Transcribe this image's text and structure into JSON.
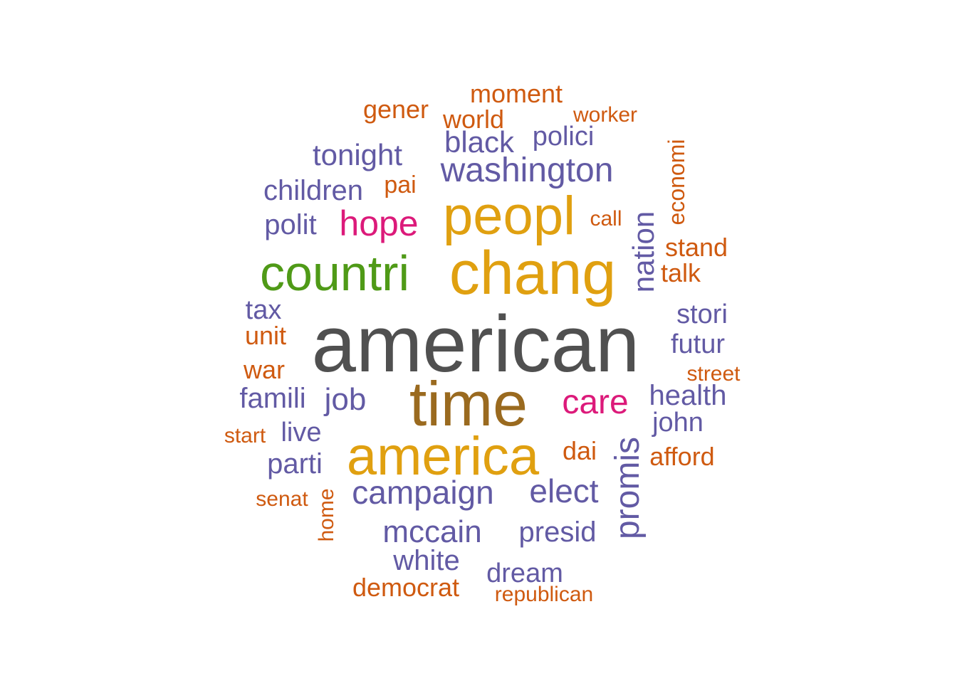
{
  "chart_data": {
    "type": "wordcloud",
    "palette": {
      "gray": "#505050",
      "brown": "#9a6a1f",
      "gold": "#e0a010",
      "green": "#4f9a17",
      "magenta": "#dc1a7a",
      "purple": "#625aa4",
      "orange": "#cf5a10"
    },
    "words": [
      {
        "text": "american",
        "color": "gray",
        "rotated": false
      },
      {
        "text": "time",
        "color": "brown",
        "rotated": false
      },
      {
        "text": "chang",
        "color": "gold",
        "rotated": false
      },
      {
        "text": "america",
        "color": "gold",
        "rotated": false
      },
      {
        "text": "peopl",
        "color": "gold",
        "rotated": false
      },
      {
        "text": "countri",
        "color": "green",
        "rotated": false
      },
      {
        "text": "hope",
        "color": "magenta",
        "rotated": false
      },
      {
        "text": "care",
        "color": "magenta",
        "rotated": false
      },
      {
        "text": "washington",
        "color": "purple",
        "rotated": false
      },
      {
        "text": "campaign",
        "color": "purple",
        "rotated": false
      },
      {
        "text": "elect",
        "color": "purple",
        "rotated": false
      },
      {
        "text": "nation",
        "color": "purple",
        "rotated": true
      },
      {
        "text": "promis",
        "color": "purple",
        "rotated": true
      },
      {
        "text": "mccain",
        "color": "purple",
        "rotated": false
      },
      {
        "text": "tonight",
        "color": "purple",
        "rotated": false
      },
      {
        "text": "children",
        "color": "purple",
        "rotated": false
      },
      {
        "text": "black",
        "color": "purple",
        "rotated": false
      },
      {
        "text": "job",
        "color": "purple",
        "rotated": false
      },
      {
        "text": "health",
        "color": "purple",
        "rotated": false
      },
      {
        "text": "presid",
        "color": "purple",
        "rotated": false
      },
      {
        "text": "polit",
        "color": "purple",
        "rotated": false
      },
      {
        "text": "famili",
        "color": "purple",
        "rotated": false
      },
      {
        "text": "white",
        "color": "purple",
        "rotated": false
      },
      {
        "text": "dream",
        "color": "purple",
        "rotated": false
      },
      {
        "text": "polici",
        "color": "purple",
        "rotated": false
      },
      {
        "text": "stori",
        "color": "purple",
        "rotated": false
      },
      {
        "text": "futur",
        "color": "purple",
        "rotated": false
      },
      {
        "text": "john",
        "color": "purple",
        "rotated": false
      },
      {
        "text": "parti",
        "color": "purple",
        "rotated": false
      },
      {
        "text": "tax",
        "color": "purple",
        "rotated": false
      },
      {
        "text": "live",
        "color": "purple",
        "rotated": false
      },
      {
        "text": "moment",
        "color": "orange",
        "rotated": false
      },
      {
        "text": "world",
        "color": "orange",
        "rotated": false
      },
      {
        "text": "gener",
        "color": "orange",
        "rotated": false
      },
      {
        "text": "stand",
        "color": "orange",
        "rotated": false
      },
      {
        "text": "afford",
        "color": "orange",
        "rotated": false
      },
      {
        "text": "democrat",
        "color": "orange",
        "rotated": false
      },
      {
        "text": "talk",
        "color": "orange",
        "rotated": false
      },
      {
        "text": "unit",
        "color": "orange",
        "rotated": false
      },
      {
        "text": "war",
        "color": "orange",
        "rotated": false
      },
      {
        "text": "dai",
        "color": "orange",
        "rotated": false
      },
      {
        "text": "economi",
        "color": "orange",
        "rotated": true
      },
      {
        "text": "pai",
        "color": "orange",
        "rotated": false
      },
      {
        "text": "call",
        "color": "orange",
        "rotated": false
      },
      {
        "text": "worker",
        "color": "orange",
        "rotated": false
      },
      {
        "text": "republican",
        "color": "orange",
        "rotated": false
      },
      {
        "text": "senat",
        "color": "orange",
        "rotated": false
      },
      {
        "text": "start",
        "color": "orange",
        "rotated": false
      },
      {
        "text": "street",
        "color": "orange",
        "rotated": false
      },
      {
        "text": "home",
        "color": "orange",
        "rotated": true
      }
    ]
  }
}
